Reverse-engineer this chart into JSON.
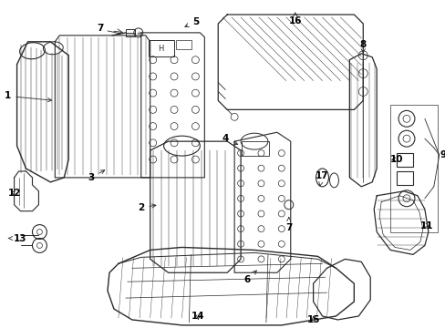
{
  "background_color": "#ffffff",
  "line_color": "#2a2a2a",
  "label_color": "#000000",
  "fs": 7.5,
  "lw": 0.7
}
